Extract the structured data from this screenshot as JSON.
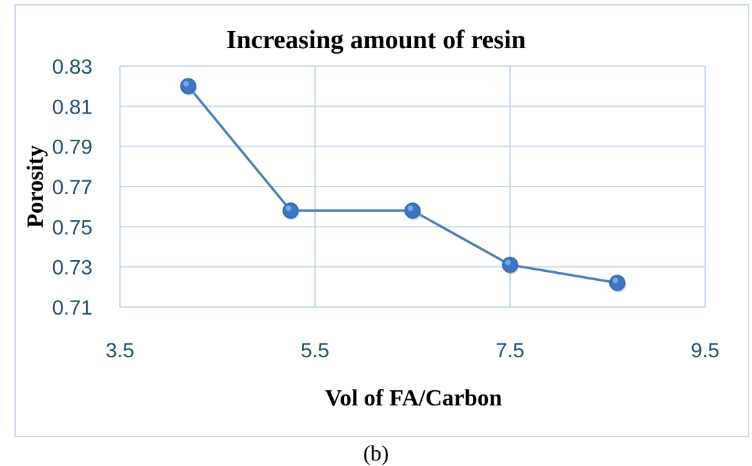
{
  "caption": "(b)",
  "chart_data": {
    "type": "scatter",
    "title": "Increasing amount of resin",
    "xlabel": "Vol of FA/Carbon",
    "ylabel": "Porosity",
    "x": [
      4.2,
      5.25,
      6.5,
      7.5,
      8.6
    ],
    "y": [
      0.82,
      0.758,
      0.758,
      0.731,
      0.722
    ],
    "xlim": [
      3.5,
      9.5
    ],
    "ylim": [
      0.71,
      0.83
    ],
    "xticks": [
      "3.5",
      "5.5",
      "7.5",
      "9.5"
    ],
    "yticks": [
      "0.71",
      "0.73",
      "0.75",
      "0.77",
      "0.79",
      "0.81",
      "0.83"
    ],
    "grid": true,
    "line": true,
    "markers": true,
    "color": "#4a7ebb",
    "marker_color": "#3b76c4"
  }
}
